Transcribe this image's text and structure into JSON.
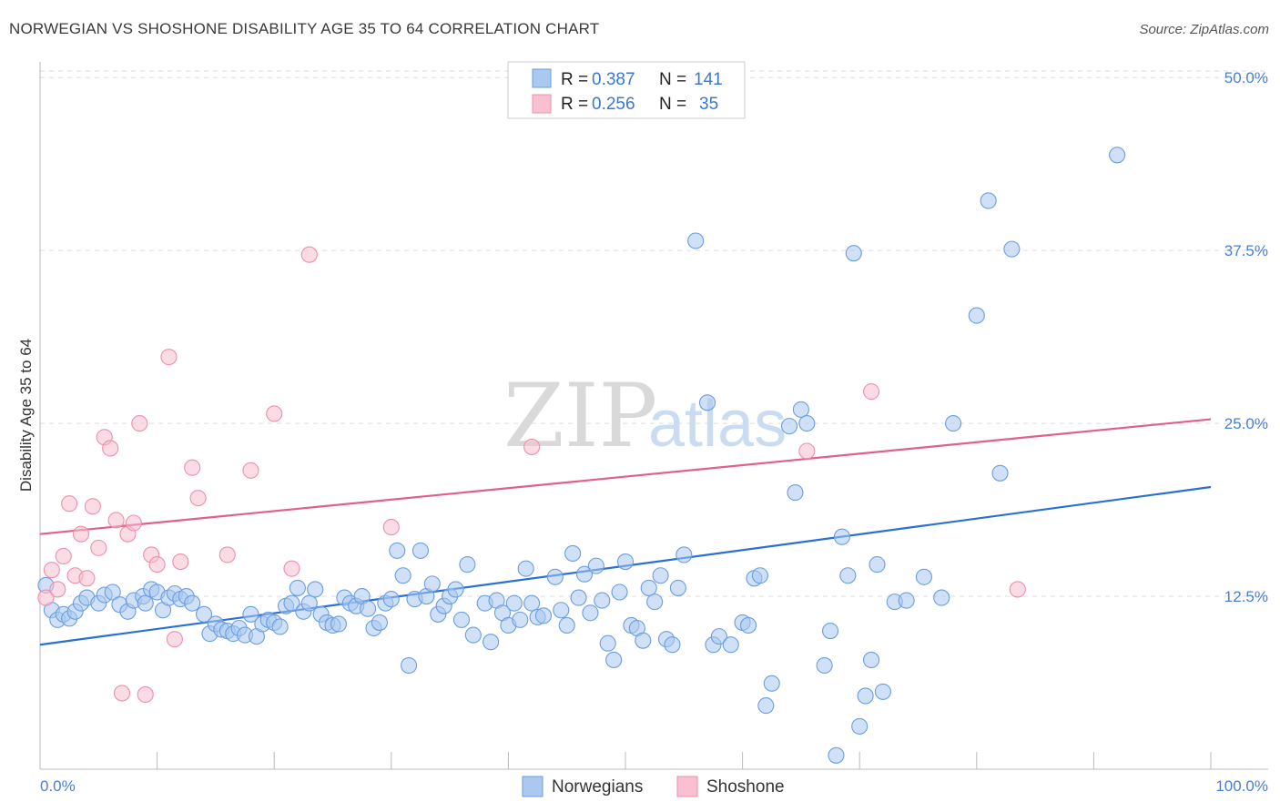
{
  "header": {
    "title": "NORWEGIAN VS SHOSHONE DISABILITY AGE 35 TO 64 CORRELATION CHART",
    "source": "Source: ZipAtlas.com"
  },
  "watermark": {
    "zip": "ZIP",
    "atlas": "atlas"
  },
  "legend": {
    "rows": [
      {
        "r_label": "R =",
        "r_value": "0.387",
        "n_label": "N =",
        "n_value": "141",
        "color": "#aac8f0"
      },
      {
        "r_label": "R =",
        "r_value": "0.256",
        "n_label": "N =",
        "n_value": "35",
        "color": "#f5b8cb"
      }
    ]
  },
  "bottom_legend": [
    "Norwegians",
    "Shoshone"
  ],
  "chart_data": {
    "type": "scatter",
    "title": "NORWEGIAN VS SHOSHONE DISABILITY AGE 35 TO 64 CORRELATION CHART",
    "xlabel": "",
    "ylabel": "Disability Age 35 to 64",
    "xlim": [
      0,
      100
    ],
    "ylim": [
      0,
      51
    ],
    "x_tick_labels": [
      "0.0%",
      "100.0%"
    ],
    "y_ticks": [
      12.5,
      25.0,
      37.5,
      50.0
    ],
    "y_tick_labels": [
      "12.5%",
      "25.0%",
      "37.5%",
      "50.0%"
    ],
    "grid": "horizontal dashed",
    "legend_position": "top-center",
    "colors": {
      "blue_fill": "#aac8f0",
      "blue_stroke": "#6a9ee0",
      "blue_line": "#2a6fd4",
      "pink_fill": "#f8c0d0",
      "pink_stroke": "#ec8fae",
      "pink_line": "#e0608a"
    },
    "series": [
      {
        "name": "Norwegians",
        "color": "#6a9ee0",
        "trend": {
          "x": [
            0,
            100
          ],
          "y": [
            9.0,
            20.4
          ]
        },
        "points": [
          [
            0.5,
            13.3
          ],
          [
            1.0,
            11.5
          ],
          [
            1.5,
            10.8
          ],
          [
            2.0,
            11.2
          ],
          [
            2.5,
            10.9
          ],
          [
            3.0,
            11.4
          ],
          [
            3.5,
            12.0
          ],
          [
            4.0,
            12.4
          ],
          [
            5.0,
            12.0
          ],
          [
            5.5,
            12.6
          ],
          [
            6.2,
            12.8
          ],
          [
            6.8,
            11.9
          ],
          [
            7.5,
            11.4
          ],
          [
            8.0,
            12.2
          ],
          [
            8.8,
            12.5
          ],
          [
            9.0,
            12.0
          ],
          [
            9.5,
            13.0
          ],
          [
            10.0,
            12.8
          ],
          [
            10.5,
            11.5
          ],
          [
            11.0,
            12.4
          ],
          [
            11.5,
            12.7
          ],
          [
            12.0,
            12.3
          ],
          [
            12.5,
            12.5
          ],
          [
            13.0,
            12.0
          ],
          [
            14.0,
            11.2
          ],
          [
            14.5,
            9.8
          ],
          [
            15.0,
            10.5
          ],
          [
            15.5,
            10.1
          ],
          [
            16.0,
            10.0
          ],
          [
            16.5,
            9.8
          ],
          [
            17.0,
            10.2
          ],
          [
            17.5,
            9.7
          ],
          [
            18.0,
            11.2
          ],
          [
            18.5,
            9.6
          ],
          [
            19.0,
            10.5
          ],
          [
            19.5,
            10.8
          ],
          [
            20.0,
            10.6
          ],
          [
            20.5,
            10.3
          ],
          [
            21.0,
            11.8
          ],
          [
            21.5,
            12.0
          ],
          [
            22.0,
            13.1
          ],
          [
            22.5,
            11.4
          ],
          [
            23.0,
            12.0
          ],
          [
            23.5,
            13.0
          ],
          [
            24.0,
            11.2
          ],
          [
            24.5,
            10.6
          ],
          [
            25.0,
            10.4
          ],
          [
            25.5,
            10.5
          ],
          [
            26.0,
            12.4
          ],
          [
            26.5,
            12.0
          ],
          [
            27.0,
            11.8
          ],
          [
            27.5,
            12.5
          ],
          [
            28.0,
            11.6
          ],
          [
            28.5,
            10.2
          ],
          [
            29.0,
            10.6
          ],
          [
            29.5,
            12.0
          ],
          [
            30.0,
            12.3
          ],
          [
            30.5,
            15.8
          ],
          [
            31.0,
            14.0
          ],
          [
            31.5,
            7.5
          ],
          [
            32.0,
            12.3
          ],
          [
            32.5,
            15.8
          ],
          [
            33.0,
            12.5
          ],
          [
            33.5,
            13.4
          ],
          [
            34.0,
            11.2
          ],
          [
            34.5,
            11.8
          ],
          [
            35.0,
            12.5
          ],
          [
            35.5,
            13.0
          ],
          [
            36.0,
            10.8
          ],
          [
            36.5,
            14.8
          ],
          [
            37.0,
            9.7
          ],
          [
            38.0,
            12.0
          ],
          [
            38.5,
            9.2
          ],
          [
            39.0,
            12.2
          ],
          [
            39.5,
            11.3
          ],
          [
            40.0,
            10.4
          ],
          [
            40.5,
            12.0
          ],
          [
            41.0,
            10.8
          ],
          [
            41.5,
            14.5
          ],
          [
            42.0,
            12.0
          ],
          [
            42.5,
            11.0
          ],
          [
            43.0,
            11.1
          ],
          [
            44.0,
            13.9
          ],
          [
            44.5,
            11.5
          ],
          [
            45.0,
            10.4
          ],
          [
            45.5,
            15.6
          ],
          [
            46.0,
            12.4
          ],
          [
            46.5,
            14.1
          ],
          [
            47.0,
            11.3
          ],
          [
            47.5,
            14.7
          ],
          [
            48.0,
            12.2
          ],
          [
            48.5,
            9.1
          ],
          [
            49.0,
            7.9
          ],
          [
            49.5,
            12.8
          ],
          [
            50.0,
            15.0
          ],
          [
            50.5,
            10.4
          ],
          [
            51.0,
            10.2
          ],
          [
            51.5,
            9.3
          ],
          [
            52.0,
            13.1
          ],
          [
            52.5,
            12.1
          ],
          [
            53.0,
            14.0
          ],
          [
            53.5,
            9.4
          ],
          [
            54.0,
            9.0
          ],
          [
            54.5,
            13.1
          ],
          [
            55.0,
            15.5
          ],
          [
            56.0,
            38.2
          ],
          [
            57.0,
            26.5
          ],
          [
            57.5,
            9.0
          ],
          [
            58.0,
            9.6
          ],
          [
            59.0,
            9.0
          ],
          [
            60.0,
            10.6
          ],
          [
            60.5,
            10.4
          ],
          [
            61.0,
            13.8
          ],
          [
            61.5,
            14.0
          ],
          [
            62.0,
            4.6
          ],
          [
            62.5,
            6.2
          ],
          [
            64.0,
            24.8
          ],
          [
            64.5,
            20.0
          ],
          [
            65.0,
            26.0
          ],
          [
            65.5,
            25.0
          ],
          [
            67.0,
            7.5
          ],
          [
            67.5,
            10.0
          ],
          [
            68.0,
            1.0
          ],
          [
            68.5,
            16.8
          ],
          [
            69.0,
            14.0
          ],
          [
            69.5,
            37.3
          ],
          [
            70.0,
            3.1
          ],
          [
            70.5,
            5.3
          ],
          [
            71.0,
            7.9
          ],
          [
            71.5,
            14.8
          ],
          [
            72.0,
            5.6
          ],
          [
            73.0,
            12.1
          ],
          [
            74.0,
            12.2
          ],
          [
            75.5,
            13.9
          ],
          [
            77.0,
            12.4
          ],
          [
            78.0,
            25.0
          ],
          [
            80.0,
            32.8
          ],
          [
            81.0,
            41.1
          ],
          [
            82.0,
            21.4
          ],
          [
            83.0,
            37.6
          ],
          [
            92.0,
            44.4
          ]
        ]
      },
      {
        "name": "Shoshone",
        "color": "#ec8fae",
        "trend": {
          "x": [
            0,
            100
          ],
          "y": [
            17.0,
            25.3
          ]
        },
        "points": [
          [
            0.5,
            12.4
          ],
          [
            1.0,
            14.4
          ],
          [
            1.5,
            13.0
          ],
          [
            2.0,
            15.4
          ],
          [
            2.5,
            19.2
          ],
          [
            3.0,
            14.0
          ],
          [
            3.5,
            17.0
          ],
          [
            4.0,
            13.8
          ],
          [
            4.5,
            19.0
          ],
          [
            5.0,
            16.0
          ],
          [
            5.5,
            24.0
          ],
          [
            6.0,
            23.2
          ],
          [
            6.5,
            18.0
          ],
          [
            7.0,
            5.5
          ],
          [
            7.5,
            17.0
          ],
          [
            8.0,
            17.8
          ],
          [
            8.5,
            25.0
          ],
          [
            9.0,
            5.4
          ],
          [
            9.5,
            15.5
          ],
          [
            10.0,
            14.8
          ],
          [
            11.0,
            29.8
          ],
          [
            11.5,
            9.4
          ],
          [
            12.0,
            15.0
          ],
          [
            13.0,
            21.8
          ],
          [
            13.5,
            19.6
          ],
          [
            16.0,
            15.5
          ],
          [
            18.0,
            21.6
          ],
          [
            20.0,
            25.7
          ],
          [
            21.5,
            14.5
          ],
          [
            23.0,
            37.2
          ],
          [
            30.0,
            17.5
          ],
          [
            42.0,
            23.3
          ],
          [
            65.5,
            23.0
          ],
          [
            71.0,
            27.3
          ],
          [
            83.5,
            13.0
          ]
        ]
      }
    ]
  }
}
